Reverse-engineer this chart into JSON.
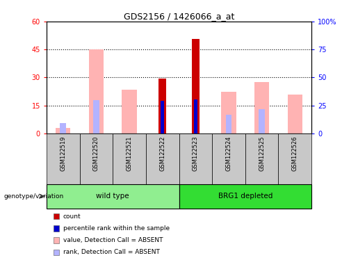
{
  "title": "GDS2156 / 1426066_a_at",
  "samples": [
    "GSM122519",
    "GSM122520",
    "GSM122521",
    "GSM122522",
    "GSM122523",
    "GSM122524",
    "GSM122525",
    "GSM122526"
  ],
  "count_values": [
    null,
    null,
    null,
    29.5,
    50.5,
    null,
    null,
    null
  ],
  "percentile_rank_values": [
    null,
    null,
    null,
    29.0,
    30.5,
    null,
    null,
    null
  ],
  "absent_value": [
    3.0,
    45.0,
    23.5,
    null,
    null,
    22.5,
    27.5,
    21.0
  ],
  "absent_rank": [
    9.0,
    30.0,
    null,
    null,
    null,
    17.0,
    22.0,
    null
  ],
  "ylim_left": [
    0,
    60
  ],
  "ylim_right": [
    0,
    100
  ],
  "yticks_left": [
    0,
    15,
    30,
    45,
    60
  ],
  "ytick_labels_left": [
    "0",
    "15",
    "30",
    "45",
    "60"
  ],
  "yticks_right": [
    0,
    25,
    50,
    75,
    100
  ],
  "ytick_labels_right": [
    "0",
    "25",
    "50",
    "75",
    "100%"
  ],
  "color_count": "#cc0000",
  "color_rank": "#0000cc",
  "color_absent_value": "#ffb3b3",
  "color_absent_rank": "#b3b3ff",
  "color_group1_bg": "#90ee90",
  "color_group2_bg": "#33dd33",
  "color_xticklabel_bg": "#c8c8c8",
  "group_labels": [
    "wild type",
    "BRG1 depleted"
  ],
  "legend_items": [
    {
      "color": "#cc0000",
      "label": "count"
    },
    {
      "color": "#0000cc",
      "label": "percentile rank within the sample"
    },
    {
      "color": "#ffb3b3",
      "label": "value, Detection Call = ABSENT"
    },
    {
      "color": "#b3b3ff",
      "label": "rank, Detection Call = ABSENT"
    }
  ]
}
